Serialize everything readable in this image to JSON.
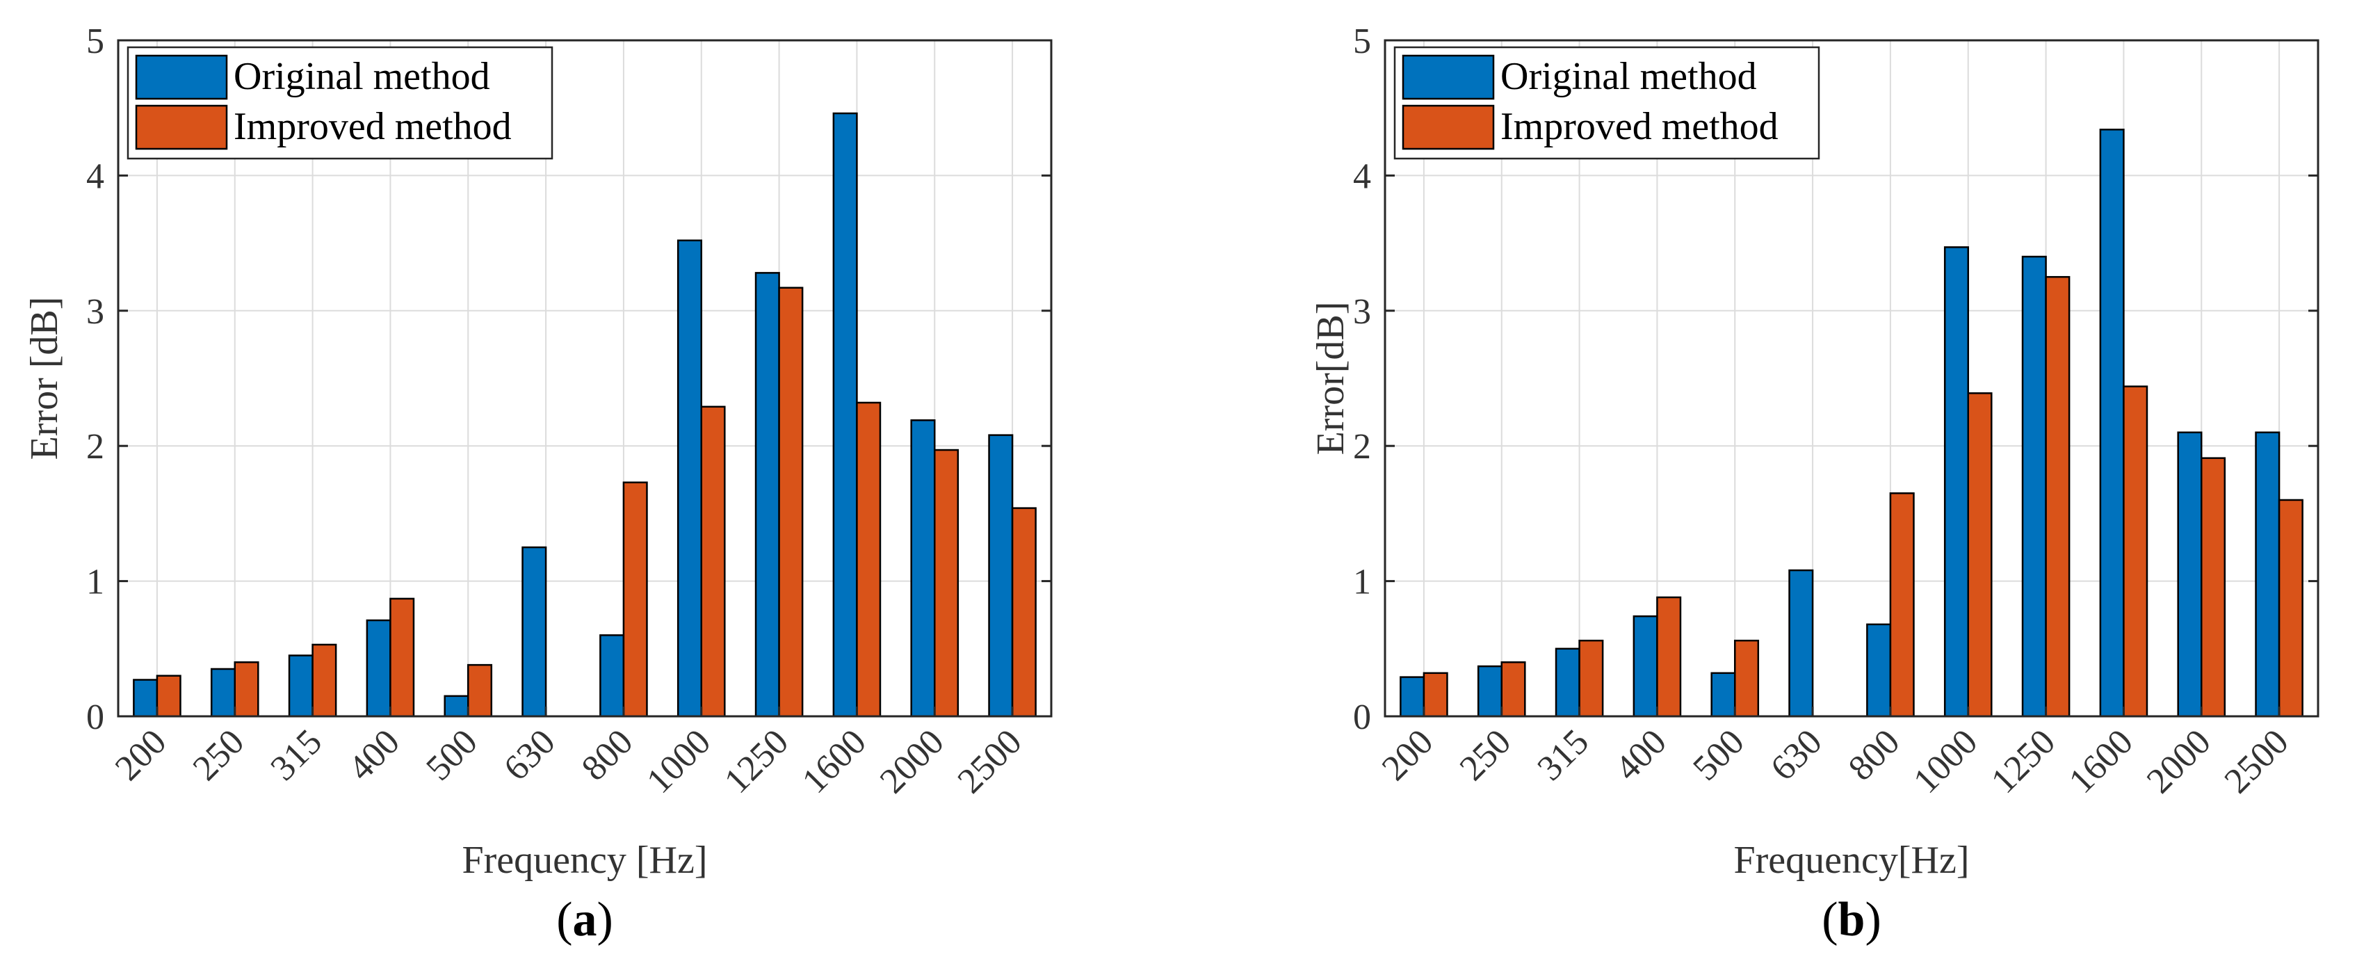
{
  "chart_data": [
    {
      "type": "bar",
      "panel_label": "a",
      "title": "",
      "xlabel": "Frequency [Hz]",
      "ylabel": "Error [dB]",
      "ylim": [
        0,
        5
      ],
      "yticks": [
        0,
        1,
        2,
        3,
        4,
        5
      ],
      "grid": true,
      "legend_position": "top-left",
      "categories": [
        "200",
        "250",
        "315",
        "400",
        "500",
        "630",
        "800",
        "1000",
        "1250",
        "1600",
        "2000",
        "2500"
      ],
      "series": [
        {
          "name": "Original method",
          "color": "#0072BD",
          "values": [
            0.27,
            0.35,
            0.45,
            0.71,
            0.15,
            1.25,
            0.6,
            3.52,
            3.28,
            4.46,
            2.19,
            2.08
          ]
        },
        {
          "name": "Improved method",
          "color": "#D95319",
          "values": [
            0.3,
            0.4,
            0.53,
            0.87,
            0.38,
            0.0,
            1.73,
            2.29,
            3.17,
            2.32,
            1.97,
            1.54
          ]
        }
      ]
    },
    {
      "type": "bar",
      "panel_label": "b",
      "title": "",
      "xlabel": "Frequency[Hz]",
      "ylabel": "Error[dB]",
      "ylim": [
        0,
        5
      ],
      "yticks": [
        0,
        1,
        2,
        3,
        4,
        5
      ],
      "grid": true,
      "legend_position": "top-left",
      "categories": [
        "200",
        "250",
        "315",
        "400",
        "500",
        "630",
        "800",
        "1000",
        "1250",
        "1600",
        "2000",
        "2500"
      ],
      "series": [
        {
          "name": "Original method",
          "color": "#0072BD",
          "values": [
            0.29,
            0.37,
            0.5,
            0.74,
            0.32,
            1.08,
            0.68,
            3.47,
            3.4,
            4.34,
            2.1,
            2.1
          ]
        },
        {
          "name": "Improved method",
          "color": "#D95319",
          "values": [
            0.32,
            0.4,
            0.56,
            0.88,
            0.56,
            0.0,
            1.65,
            2.39,
            3.25,
            2.44,
            1.91,
            1.6
          ]
        }
      ]
    }
  ]
}
